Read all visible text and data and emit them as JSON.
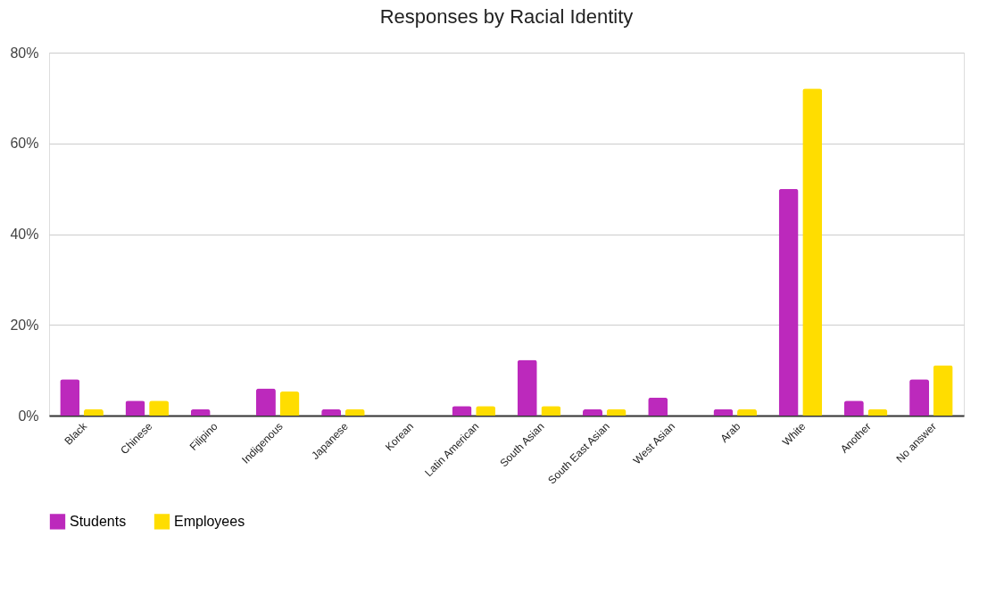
{
  "chart_data": {
    "type": "bar",
    "title": "Responses by Racial Identity",
    "categories": [
      "Black",
      "Chinese",
      "Filipino",
      "Indigenous",
      "Japanese",
      "Korean",
      "Latin American",
      "South Asian",
      "South East Asian",
      "West Asian",
      "Arab",
      "White",
      "Another",
      "No answer"
    ],
    "series": [
      {
        "name": "Students",
        "color": "#bc29bc",
        "values": [
          8.0,
          3.3,
          1.4,
          6.0,
          1.4,
          0,
          2.1,
          12.3,
          1.4,
          4.0,
          1.4,
          50.0,
          3.3,
          8.0
        ]
      },
      {
        "name": "Employees",
        "color": "#ffdd00",
        "values": [
          1.4,
          3.3,
          0,
          5.3,
          1.4,
          0,
          2.1,
          2.1,
          1.4,
          0,
          1.4,
          72.1,
          1.4,
          11.1
        ]
      }
    ],
    "ylim": [
      0,
      80
    ],
    "yticks": [
      {
        "value": 0,
        "label": "0%"
      },
      {
        "value": 20,
        "label": "20%"
      },
      {
        "value": 40,
        "label": "40%"
      },
      {
        "value": 60,
        "label": "60%"
      },
      {
        "value": 80,
        "label": "80%"
      }
    ],
    "grid": "y",
    "legend": "bottom"
  }
}
